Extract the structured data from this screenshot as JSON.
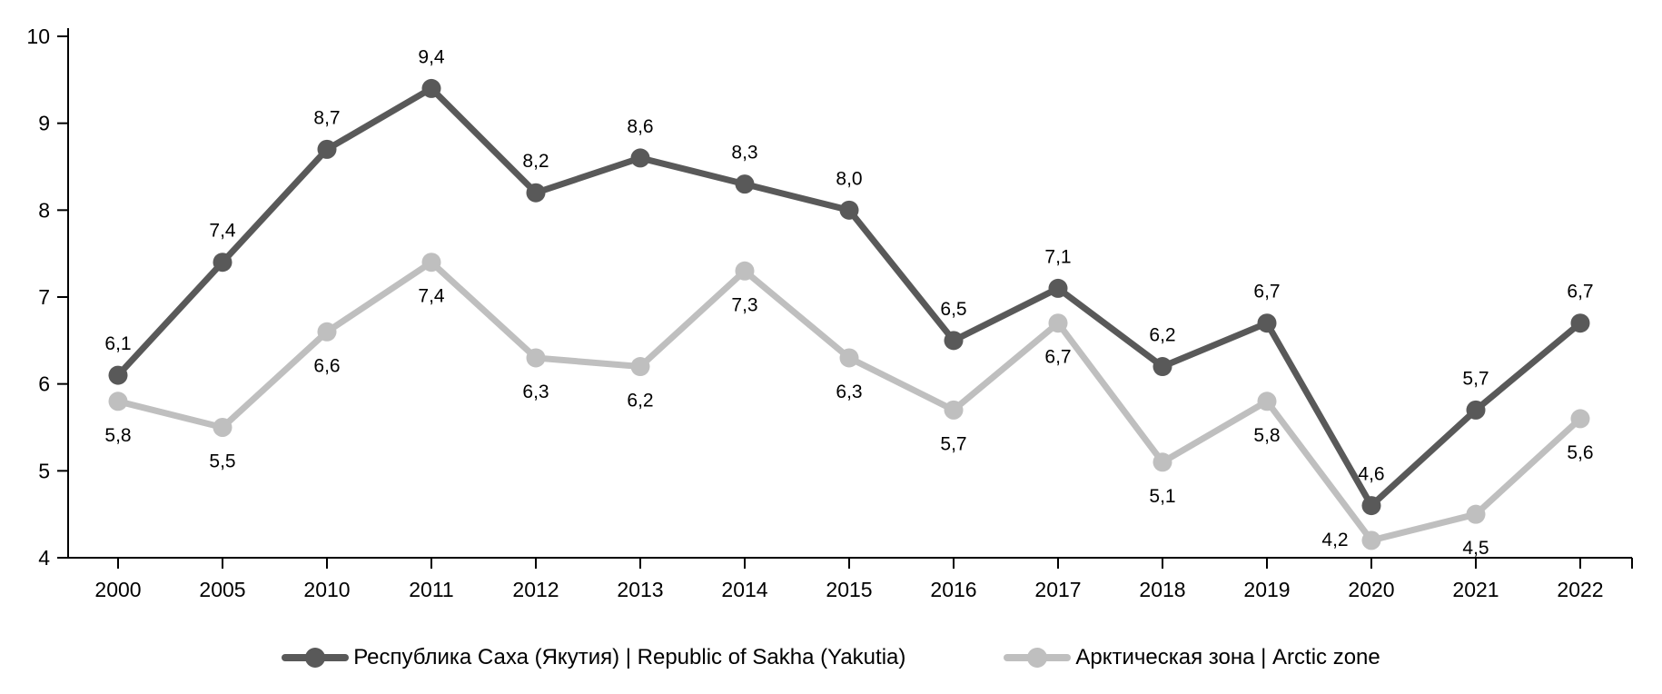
{
  "chart_data": {
    "type": "line",
    "title": "",
    "xlabel": "",
    "ylabel": "",
    "categories": [
      "2000",
      "2005",
      "2010",
      "2011",
      "2012",
      "2013",
      "2014",
      "2015",
      "2016",
      "2017",
      "2018",
      "2019",
      "2020",
      "2021",
      "2022"
    ],
    "ylim": [
      4,
      10
    ],
    "yticks": [
      "4",
      "5",
      "6",
      "7",
      "8",
      "9",
      "10"
    ],
    "grid": false,
    "legend_position": "bottom",
    "axis_color": "#000000",
    "label_color": "#000000",
    "series": [
      {
        "name": "Республика Саха (Якутия) | Republic of Sakha (Yakutia)",
        "color": "#595959",
        "values": [
          6.1,
          7.4,
          8.7,
          9.4,
          8.2,
          8.6,
          8.3,
          8.0,
          6.5,
          7.1,
          6.2,
          6.7,
          4.6,
          5.7,
          6.7
        ],
        "labels": [
          "6,1",
          "7,4",
          "8,7",
          "9,4",
          "8,2",
          "8,6",
          "8,3",
          "8,0",
          "6,5",
          "7,1",
          "6,2",
          "6,7",
          "4,6",
          "5,7",
          "6,7"
        ],
        "label_position": "above"
      },
      {
        "name": "Арктическая зона | Arctic zone",
        "color": "#bfbfbf",
        "values": [
          5.8,
          5.5,
          6.6,
          7.4,
          6.3,
          6.2,
          7.3,
          6.3,
          5.7,
          6.7,
          5.1,
          5.8,
          4.2,
          4.5,
          5.6
        ],
        "labels": [
          "5,8",
          "5,5",
          "6,6",
          "7,4",
          "6,3",
          "6,2",
          "7,3",
          "6,3",
          "5,7",
          "6,7",
          "5,1",
          "5,8",
          "4,2",
          "4,5",
          "5,6"
        ],
        "label_position": "below",
        "label_overrides": {
          "12": {
            "dx": -40,
            "dy": 6
          }
        }
      }
    ]
  }
}
